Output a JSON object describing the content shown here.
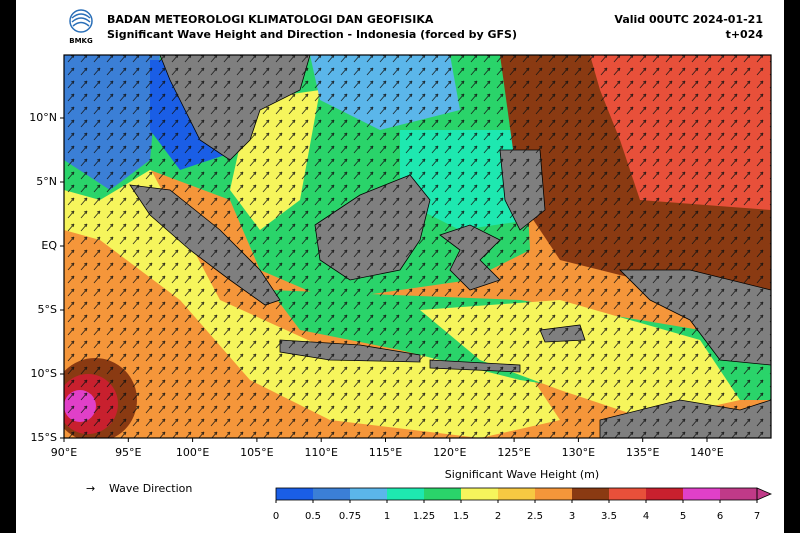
{
  "header": {
    "agency": "BADAN METEOROLOGI KLIMATOLOGI DAN GEOFISIKA",
    "title": "Significant Wave Height and Direction - Indonesia (forced by GFS)",
    "valid": "Valid 00UTC 2024-01-21",
    "lead": "t+024",
    "logo_text": "BMKG"
  },
  "map": {
    "lat_labels": [
      "10°N",
      "5°N",
      "EQ",
      "5°S",
      "10°S",
      "15°S"
    ],
    "lon_labels": [
      "90°E",
      "95°E",
      "100°E",
      "105°E",
      "110°E",
      "115°E",
      "120°E",
      "125°E",
      "130°E",
      "135°E",
      "140°E"
    ]
  },
  "legend": {
    "label": "Wave Direction"
  },
  "colorbar": {
    "title": "Significant Wave Height (m)",
    "levels": [
      0,
      0.5,
      0.75,
      1,
      1.25,
      1.5,
      2,
      2.5,
      3,
      3.5,
      4,
      5,
      6,
      7
    ],
    "colors": [
      "#1a5ee6",
      "#3b7fd6",
      "#5bb6ea",
      "#1ee8b0",
      "#2ad46a",
      "#f6f55c",
      "#f7c942",
      "#f5963a",
      "#8a3a12",
      "#e8503a",
      "#c8202e",
      "#e040c8",
      "#c03a88"
    ]
  }
}
